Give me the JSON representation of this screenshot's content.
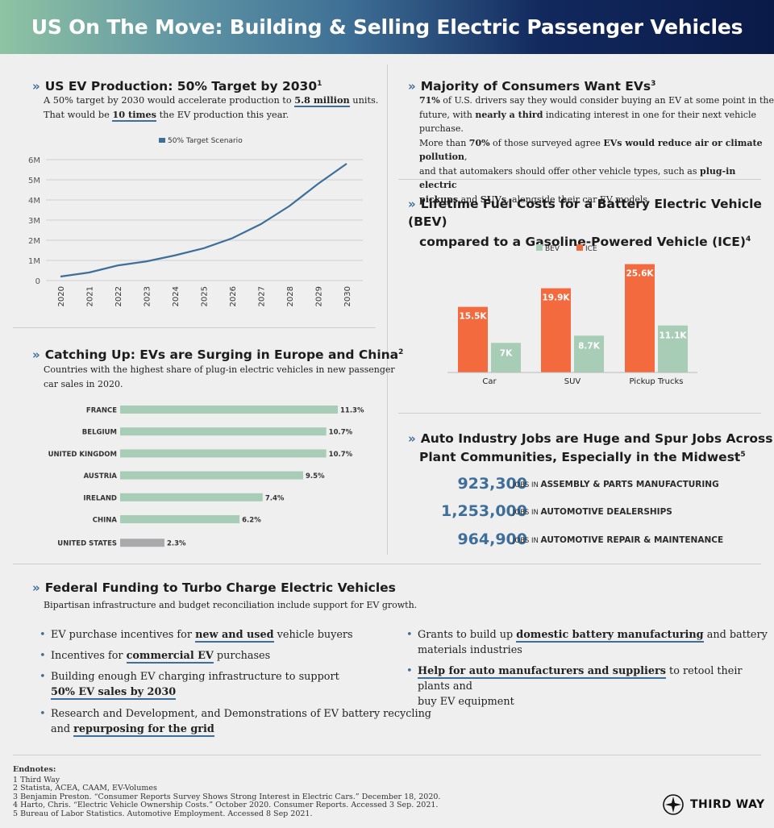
{
  "header": {
    "title": "US On The Move: Building & Selling Electric Passenger Vehicles"
  },
  "production": {
    "title": "US EV Production: 50% Target by 2030",
    "sup": "1",
    "line1_pre": "A 50% target by 2030 would accelerate production to ",
    "line1_bold": "5.8 million",
    "line1_post": " units.",
    "line2_pre": "That would be ",
    "line2_bold": "10 times",
    "line2_post": " the EV production this year."
  },
  "consumers": {
    "title": "Majority of Consumers Want EVs",
    "sup": "3",
    "p1_bold": "71%",
    "p1": " of U.S. drivers say they would consider buying an EV at some point in the",
    "p2_pre": "future, with ",
    "p2_bold": "nearly a third",
    "p2_post": " indicating interest in one for their next vehicle purchase.",
    "p3_pre": "More than ",
    "p3_bold1": "70%",
    "p3_mid": " of those surveyed agree ",
    "p3_bold2": "EVs would reduce air or climate pollution",
    "p3_post": ",",
    "p4_pre": "and that automakers should offer other vehicle types, such as ",
    "p4_bold": "plug-in electric",
    "p5_bold1": "pickups",
    "p5_mid": " and ",
    "p5_bold2": "SUVs",
    "p5_post": ", alongside their car EV models."
  },
  "fuel": {
    "title1": "Lifetime Fuel Costs for a Battery Electric Vehicle (BEV)",
    "title2": "compared to a Gasoline-Powered Vehicle (ICE)",
    "sup": "4"
  },
  "catching": {
    "title": "Catching Up: EVs are Surging in Europe and China",
    "sup": "2",
    "line1": "Countries with the highest share of plug-in electric vehicles in new passenger",
    "line2": "car sales in 2020."
  },
  "jobs": {
    "title1": "Auto Industry Jobs are Huge and Spur Jobs Across",
    "title2": "Plant Communities, Especially in the Midwest",
    "sup": "5",
    "rows": [
      {
        "number": "923,300",
        "prefix": "JOBS IN ",
        "label": "ASSEMBLY & PARTS MANUFACTURING"
      },
      {
        "number": "1,253,000",
        "prefix": "JOBS IN ",
        "label": "AUTOMOTIVE DEALERSHIPS"
      },
      {
        "number": "964,900",
        "prefix": "JOBS IN ",
        "label": "AUTOMOTIVE REPAIR & MAINTENANCE"
      }
    ]
  },
  "federal": {
    "title": "Federal Funding to Turbo Charge Electric Vehicles",
    "intro": "Bipartisan infrastructure and budget reconciliation include support for EV growth.",
    "bullets_left": [
      {
        "pre": "EV purchase incentives for ",
        "link": "new and used",
        "post": " vehicle buyers"
      },
      {
        "pre": "Incentives for ",
        "link": "commercial EV",
        "post": " purchases"
      },
      {
        "pre": "Building enough EV charging infrastructure to support",
        "link": "50% EV sales by 2030",
        "post": ""
      },
      {
        "pre": "Research and Development, and Demonstrations of EV battery recycling",
        "pre2": "and ",
        "link": "repurposing for the grid",
        "post": ""
      }
    ],
    "bullets_right": [
      {
        "pre": "Grants to build up ",
        "link": "domestic battery manufacturing",
        "post": " and battery",
        "line2": "materials industries"
      },
      {
        "pre": "",
        "link": "Help for auto manufacturers and suppliers",
        "post": " to retool their plants and",
        "line2": "buy EV equipment"
      }
    ]
  },
  "endnotes": {
    "heading": "Endnotes:",
    "items": [
      "1 Third Way",
      "2 Statista, ACEA, CAAM, EV-Volumes",
      "3 Benjamin Preston. “Consumer Reports Survey Shows Strong Interest in Electric Cars.” December 18, 2020.",
      "4 Harto, Chris. “Electric Vehicle Ownership Costs.” October 2020. Consumer Reports. Accessed 3 Sep. 2021.",
      "5 Bureau of Labor Statistics. Automotive Employment. Accessed 8 Sep 2021."
    ]
  },
  "logo": {
    "text": "THIRD WAY"
  },
  "colors": {
    "accent": "#3e6f9a",
    "bev": "#a8cdb6",
    "ice": "#f26a3e",
    "us_bar": "#a9a9ab"
  },
  "chart_data": [
    {
      "type": "line",
      "title": "US EV Production",
      "legend": [
        "50% Target Scenario"
      ],
      "x": [
        2020,
        2021,
        2022,
        2023,
        2024,
        2025,
        2026,
        2027,
        2028,
        2029,
        2030
      ],
      "x_labels": [
        "2020",
        "2021",
        "2022",
        "2023",
        "2024",
        "2025",
        "2026",
        "2027",
        "2028",
        "2029",
        "2030"
      ],
      "series": [
        {
          "name": "50% Target Scenario",
          "values": [
            0.2,
            0.4,
            0.75,
            0.95,
            1.25,
            1.6,
            2.1,
            2.8,
            3.7,
            4.8,
            5.8
          ]
        }
      ],
      "ylim": [
        0,
        6
      ],
      "y_ticks": [
        0,
        1,
        2,
        3,
        4,
        5,
        6
      ],
      "y_tick_labels": [
        "0",
        "1M",
        "2M",
        "3M",
        "4M",
        "5M",
        "6M"
      ],
      "grid": true
    },
    {
      "type": "bar",
      "title": "Lifetime Fuel Costs",
      "categories": [
        "Car",
        "SUV",
        "Pickup Trucks"
      ],
      "series": [
        {
          "name": "BEV",
          "values": [
            7,
            8.7,
            11.1
          ],
          "labels": [
            "7K",
            "8.7K",
            "11.1K"
          ]
        },
        {
          "name": "ICE",
          "values": [
            15.5,
            19.9,
            25.6
          ],
          "labels": [
            "15.5K",
            "19.9K",
            "25.6K"
          ]
        }
      ],
      "legend": [
        "BEV",
        "ICE"
      ],
      "ylim": [
        0,
        28
      ]
    },
    {
      "type": "bar",
      "orientation": "horizontal",
      "title": "Share of plug-in EVs in new passenger car sales 2020",
      "categories": [
        "FRANCE",
        "BELGIUM",
        "UNITED KINGDOM",
        "AUSTRIA",
        "IRELAND",
        "CHINA",
        "UNITED STATES"
      ],
      "values": [
        11.3,
        10.7,
        10.7,
        9.5,
        7.4,
        6.2,
        2.3
      ],
      "labels": [
        "11.3%",
        "10.7%",
        "10.7%",
        "9.5%",
        "7.4%",
        "6.2%",
        "2.3%"
      ],
      "xlim": [
        0,
        11.3
      ]
    }
  ]
}
